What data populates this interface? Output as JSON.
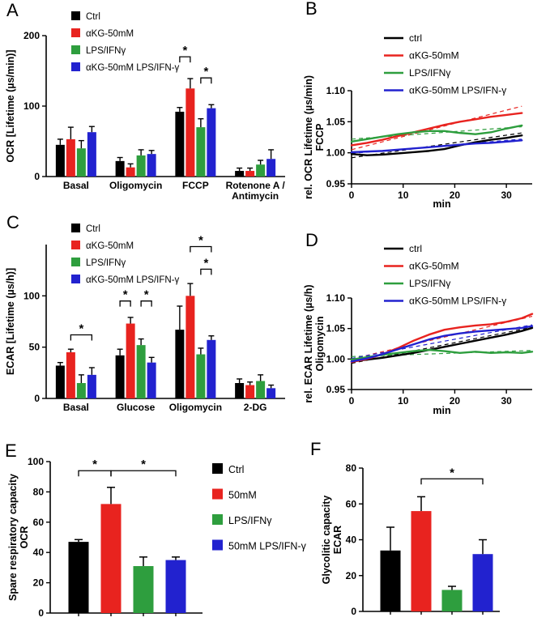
{
  "figure": {
    "background": "#ffffff",
    "panel_labels": {
      "a": "A",
      "b": "B",
      "c": "C",
      "d": "D",
      "e": "E",
      "f": "F"
    }
  },
  "colors": {
    "ctrl": "#000000",
    "akg": "#e8231f",
    "lps_ifng": "#2e9e3e",
    "akg_lps_ifng": "#2222cf"
  },
  "chart_data": [
    {
      "panel": "A",
      "type": "grouped_bar",
      "ylabel": "OCR [Lifetime (µs/min)]",
      "ylim": [
        0,
        200
      ],
      "yticks": [
        0,
        100,
        200
      ],
      "categories": [
        "Basal",
        "Oligomycin",
        "FCCP",
        "Rotenone A /\nAntimycin"
      ],
      "legend": [
        "Ctrl",
        "αKG-50mM",
        "LPS/IFNγ",
        "αKG-50mM LPS/IFN-γ"
      ],
      "series": [
        {
          "name": "Ctrl",
          "color": "#000000",
          "values": [
            45,
            22,
            92,
            8
          ],
          "errors": [
            8,
            5,
            6,
            4
          ]
        },
        {
          "name": "αKG-50mM",
          "color": "#e8231f",
          "values": [
            53,
            13,
            125,
            8
          ],
          "errors": [
            17,
            5,
            14,
            4
          ]
        },
        {
          "name": "LPS/IFNγ",
          "color": "#2e9e3e",
          "values": [
            40,
            30,
            70,
            17
          ],
          "errors": [
            11,
            8,
            12,
            6
          ]
        },
        {
          "name": "αKG-50mM LPS/IFN-γ",
          "color": "#2222cf",
          "values": [
            63,
            32,
            97,
            25
          ],
          "errors": [
            8,
            5,
            5,
            13
          ]
        }
      ],
      "significance": [
        {
          "category": 2,
          "from": 0,
          "to": 1,
          "height": 170,
          "label": "*"
        },
        {
          "category": 2,
          "from": 2,
          "to": 3,
          "height": 140,
          "label": "*"
        }
      ]
    },
    {
      "panel": "B",
      "type": "line",
      "ylabel": [
        "rel. OCR Lifetime (µs/min)",
        "FCCP"
      ],
      "xlabel": "min",
      "xlim": [
        0,
        35
      ],
      "ylim": [
        0.95,
        1.1
      ],
      "xticks": [
        0,
        10,
        20,
        30
      ],
      "yticks": [
        0.95,
        1.0,
        1.05,
        1.1
      ],
      "x": [
        0,
        3,
        6,
        9,
        12,
        15,
        18,
        21,
        24,
        27,
        30,
        33
      ],
      "series": [
        {
          "name": "ctrl",
          "color": "#000000",
          "y": [
            0.998,
            0.996,
            0.997,
            0.999,
            1.001,
            1.003,
            1.006,
            1.012,
            1.017,
            1.021,
            1.024,
            1.028
          ],
          "trend": [
            0.992,
            1.032
          ]
        },
        {
          "name": "αKG-50mM",
          "color": "#e8231f",
          "y": [
            1.012,
            1.016,
            1.021,
            1.027,
            1.033,
            1.039,
            1.045,
            1.05,
            1.054,
            1.058,
            1.061,
            1.064
          ],
          "trend": [
            1.005,
            1.075
          ]
        },
        {
          "name": "LPS/IFNγ",
          "color": "#2e9e3e",
          "y": [
            1.018,
            1.022,
            1.026,
            1.03,
            1.033,
            1.035,
            1.035,
            1.032,
            1.03,
            1.033,
            1.039,
            1.044
          ],
          "trend": [
            1.022,
            1.042
          ]
        },
        {
          "name": "αKG-50mM LPS/IFN-γ",
          "color": "#2222cf",
          "y": [
            1.001,
            1.002,
            1.003,
            1.005,
            1.007,
            1.009,
            1.011,
            1.013,
            1.015,
            1.016,
            1.018,
            1.02
          ],
          "trend": [
            0.999,
            1.022
          ]
        }
      ]
    },
    {
      "panel": "C",
      "type": "grouped_bar",
      "ylabel": "ECAR [Lifetime (µs/h)]",
      "ylim": [
        0,
        150
      ],
      "yticks": [
        0,
        50,
        100
      ],
      "categories": [
        "Basal",
        "Glucose",
        "Oligomycin",
        "2-DG"
      ],
      "legend": [
        "Ctrl",
        "αKG-50mM",
        "LPS/IFNγ",
        "αKG-50mM LPS/IFN-γ"
      ],
      "series": [
        {
          "name": "Ctrl",
          "color": "#000000",
          "values": [
            32,
            42,
            67,
            15
          ],
          "errors": [
            3,
            6,
            23,
            4
          ]
        },
        {
          "name": "αKG-50mM",
          "color": "#e8231f",
          "values": [
            45,
            73,
            100,
            13
          ],
          "errors": [
            3,
            6,
            12,
            3
          ]
        },
        {
          "name": "LPS/IFNγ",
          "color": "#2e9e3e",
          "values": [
            15,
            52,
            43,
            17
          ],
          "errors": [
            8,
            6,
            6,
            6
          ]
        },
        {
          "name": "αKG-50mM LPS/IFN-γ",
          "color": "#2222cf",
          "values": [
            23,
            35,
            57,
            10
          ],
          "errors": [
            7,
            5,
            4,
            3
          ]
        }
      ],
      "significance": [
        {
          "category": 0,
          "from": 1,
          "to": 3,
          "height": 62,
          "label": "*"
        },
        {
          "category": 1,
          "from": 0,
          "to": 1,
          "height": 95,
          "label": "*"
        },
        {
          "category": 1,
          "from": 2,
          "to": 3,
          "height": 95,
          "label": "*"
        },
        {
          "category": 2,
          "from": 1,
          "to": 3,
          "height": 148,
          "label": "*"
        },
        {
          "category": 2,
          "from": 2,
          "to": 3,
          "height": 126,
          "label": "*"
        }
      ]
    },
    {
      "panel": "D",
      "type": "line",
      "ylabel": [
        "rel. ECAR Lifetime (µs/h)",
        "Oligomycin"
      ],
      "xlabel": "min",
      "xlim": [
        0,
        35
      ],
      "ylim": [
        0.95,
        1.1
      ],
      "xticks": [
        0,
        10,
        20,
        30
      ],
      "yticks": [
        0.95,
        1.0,
        1.05,
        1.1
      ],
      "x": [
        0,
        3,
        6,
        9,
        12,
        15,
        18,
        21,
        24,
        27,
        30,
        33,
        35
      ],
      "series": [
        {
          "name": "ctrl",
          "color": "#000000",
          "y": [
            0.996,
            0.999,
            1.002,
            1.006,
            1.01,
            1.015,
            1.02,
            1.025,
            1.03,
            1.035,
            1.04,
            1.046,
            1.051
          ],
          "trend": [
            0.993,
            1.052
          ]
        },
        {
          "name": "αKG-50mM",
          "color": "#e8231f",
          "y": [
            0.995,
            1.0,
            1.008,
            1.018,
            1.03,
            1.04,
            1.048,
            1.052,
            1.055,
            1.057,
            1.061,
            1.067,
            1.074
          ],
          "trend": [
            1.0,
            1.07
          ]
        },
        {
          "name": "LPS/IFNγ",
          "color": "#2e9e3e",
          "y": [
            0.999,
            1.003,
            1.007,
            1.01,
            1.013,
            1.015,
            1.013,
            1.01,
            1.012,
            1.01,
            1.011,
            1.01,
            1.012
          ],
          "trend": [
            1.004,
            1.014
          ]
        },
        {
          "name": "αKG-50mM LPS/IFN-γ",
          "color": "#2222cf",
          "y": [
            0.996,
            1.001,
            1.008,
            1.016,
            1.024,
            1.032,
            1.038,
            1.042,
            1.045,
            1.047,
            1.049,
            1.051,
            1.054
          ],
          "trend": [
            1.001,
            1.056
          ]
        }
      ]
    },
    {
      "panel": "E",
      "type": "bar",
      "ylabel": [
        "Spare respiratory capacity",
        "OCR"
      ],
      "ylim": [
        0,
        100
      ],
      "yticks": [
        0,
        20,
        40,
        60,
        80,
        100
      ],
      "legend": [
        "Ctrl",
        "50mM",
        "LPS/IFNγ",
        "50mM LPS/IFN-γ"
      ],
      "bars": [
        {
          "name": "Ctrl",
          "color": "#000000",
          "value": 47,
          "error": 1.5
        },
        {
          "name": "50mM",
          "color": "#e8231f",
          "value": 72,
          "error": 11
        },
        {
          "name": "LPS/IFNγ",
          "color": "#2e9e3e",
          "value": 31,
          "error": 6
        },
        {
          "name": "50mM LPS/IFN-γ",
          "color": "#2222cf",
          "value": 35,
          "error": 2
        }
      ],
      "significance": [
        {
          "from": 0,
          "to": 1,
          "height": 94,
          "label": "*"
        },
        {
          "from": 1,
          "to": 3,
          "height": 94,
          "label": "*"
        }
      ]
    },
    {
      "panel": "F",
      "type": "bar",
      "ylabel": [
        "Glycolitic capacity",
        "ECAR"
      ],
      "ylim": [
        0,
        80
      ],
      "yticks": [
        0,
        20,
        40,
        60,
        80
      ],
      "bars": [
        {
          "name": "Ctrl",
          "color": "#000000",
          "value": 34,
          "error": 13
        },
        {
          "name": "50mM",
          "color": "#e8231f",
          "value": 56,
          "error": 8
        },
        {
          "name": "LPS/IFNγ",
          "color": "#2e9e3e",
          "value": 12,
          "error": 2
        },
        {
          "name": "50mM LPS/IFN-γ",
          "color": "#2222cf",
          "value": 32,
          "error": 8
        }
      ],
      "significance": [
        {
          "from": 1,
          "to": 3,
          "height": 74,
          "label": "*"
        }
      ]
    }
  ]
}
